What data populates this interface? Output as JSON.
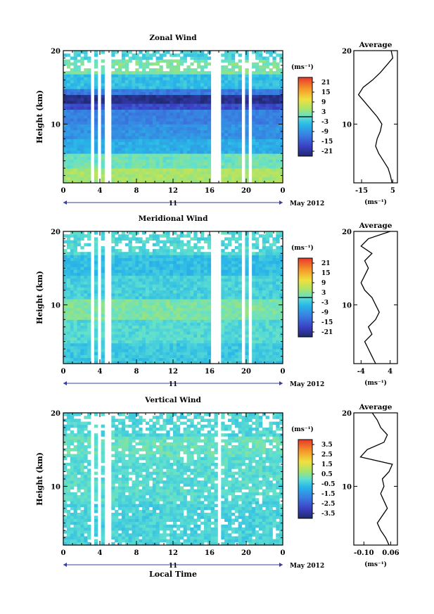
{
  "chart_data": [
    {
      "type": "heatmap",
      "title": "Zonal Wind",
      "ylabel": "Height (km)",
      "y_ticks": [
        "10",
        "20"
      ],
      "ylim": [
        2,
        20
      ],
      "x_ticks": [
        "0",
        "4",
        "8",
        "12",
        "16",
        "20",
        "0"
      ],
      "xlim": [
        0,
        24
      ],
      "date_marker": "11",
      "date_label": "May 2012",
      "unit_label": "(ms⁻¹)",
      "colorbar_ticks": [
        "21",
        "15",
        "9",
        "3",
        "-3",
        "-9",
        "-15",
        "-21"
      ],
      "colorbar_range": [
        -24,
        24
      ],
      "colorbar_zero": 0,
      "profile": {
        "title": "Average",
        "x_ticks": [
          "-15",
          "5"
        ],
        "xlim": [
          -20,
          8
        ],
        "x_tick_values": [
          -15,
          5
        ],
        "y_ticks": [
          "10",
          "20"
        ],
        "xlabel": "(ms⁻¹)",
        "points": [
          [
            4.5,
            2
          ],
          [
            3.5,
            3
          ],
          [
            2,
            4
          ],
          [
            -1,
            5
          ],
          [
            -4,
            6
          ],
          [
            -6,
            7
          ],
          [
            -5,
            8
          ],
          [
            -3,
            9
          ],
          [
            -2,
            10
          ],
          [
            -5,
            11
          ],
          [
            -9,
            12
          ],
          [
            -13,
            13
          ],
          [
            -17,
            14
          ],
          [
            -14,
            15
          ],
          [
            -8,
            16
          ],
          [
            -3,
            17
          ],
          [
            1,
            18
          ],
          [
            5,
            19
          ],
          [
            4,
            20
          ]
        ]
      },
      "bands": [
        {
          "h0": 2,
          "h1": 4,
          "v": 5
        },
        {
          "h0": 4,
          "h1": 6,
          "v": 1
        },
        {
          "h0": 6,
          "h1": 8,
          "v": -6
        },
        {
          "h0": 8,
          "h1": 10,
          "v": -9
        },
        {
          "h0": 10,
          "h1": 12,
          "v": -11
        },
        {
          "h0": 12,
          "h1": 13,
          "v": -17
        },
        {
          "h0": 13,
          "h1": 14,
          "v": -22
        },
        {
          "h0": 14,
          "h1": 15,
          "v": -12
        },
        {
          "h0": 15,
          "h1": 17,
          "v": -4
        },
        {
          "h0": 17,
          "h1": 19,
          "v": 2
        },
        {
          "h0": 19,
          "h1": 20,
          "v": -2
        }
      ],
      "gaps": [
        [
          3.0,
          3.3
        ],
        [
          3.8,
          4.2
        ],
        [
          4.6,
          5.1
        ],
        [
          16.3,
          17.2
        ],
        [
          19.6,
          20.0
        ],
        [
          20.4,
          20.8
        ]
      ]
    },
    {
      "type": "heatmap",
      "title": "Meridional Wind",
      "ylabel": "Height (km)",
      "y_ticks": [
        "10",
        "20"
      ],
      "ylim": [
        2,
        20
      ],
      "x_ticks": [
        "0",
        "4",
        "8",
        "12",
        "16",
        "20",
        "0"
      ],
      "xlim": [
        0,
        24
      ],
      "date_marker": "11",
      "date_label": "May 2012",
      "unit_label": "(ms⁻¹)",
      "colorbar_ticks": [
        "21",
        "15",
        "9",
        "3",
        "-3",
        "-9",
        "-15",
        "-21"
      ],
      "colorbar_range": [
        -24,
        24
      ],
      "colorbar_zero": 0,
      "profile": {
        "title": "Average",
        "x_ticks": [
          "-4",
          "4"
        ],
        "xlim": [
          -6,
          6
        ],
        "x_tick_values": [
          -4,
          4
        ],
        "y_ticks": [
          "10",
          "20"
        ],
        "xlabel": "(ms⁻¹)",
        "points": [
          [
            0,
            2
          ],
          [
            -1,
            3
          ],
          [
            -2,
            4
          ],
          [
            -3,
            5
          ],
          [
            -1,
            6
          ],
          [
            -2,
            7
          ],
          [
            0,
            8
          ],
          [
            1,
            9
          ],
          [
            0,
            10
          ],
          [
            -1,
            11
          ],
          [
            -3,
            12
          ],
          [
            -4,
            13
          ],
          [
            -3,
            14
          ],
          [
            -2,
            15
          ],
          [
            -3,
            16
          ],
          [
            -1,
            17
          ],
          [
            -4,
            18
          ],
          [
            -2,
            19
          ],
          [
            4,
            20
          ]
        ]
      },
      "bands": [
        {
          "h0": 2,
          "h1": 5,
          "v": -3
        },
        {
          "h0": 5,
          "h1": 8,
          "v": -1
        },
        {
          "h0": 8,
          "h1": 11,
          "v": 2
        },
        {
          "h0": 11,
          "h1": 14,
          "v": -2
        },
        {
          "h0": 14,
          "h1": 17,
          "v": -4
        },
        {
          "h0": 17,
          "h1": 20,
          "v": -1
        }
      ],
      "gaps": [
        [
          3.0,
          3.3
        ],
        [
          3.8,
          4.2
        ],
        [
          4.6,
          5.1
        ],
        [
          16.3,
          17.2
        ],
        [
          19.6,
          20.0
        ],
        [
          20.4,
          20.8
        ]
      ]
    },
    {
      "type": "heatmap",
      "title": "Vertical Wind",
      "ylabel": "Height (km)",
      "xlabel": "Local Time",
      "y_ticks": [
        "10",
        "20"
      ],
      "ylim": [
        2,
        20
      ],
      "x_ticks": [
        "0",
        "4",
        "8",
        "12",
        "16",
        "20",
        "0"
      ],
      "xlim": [
        0,
        24
      ],
      "date_marker": "11",
      "date_label": "May 2012",
      "unit_label": "(ms⁻¹)",
      "colorbar_ticks": [
        "3.5",
        "2.5",
        "1.5",
        "0.5",
        "-0.5",
        "-1.5",
        "-2.5",
        "-3.5"
      ],
      "colorbar_range": [
        -4,
        4
      ],
      "colorbar_zero": null,
      "profile": {
        "title": "Average",
        "x_ticks": [
          "-0.10",
          "0.06"
        ],
        "xlim": [
          -0.16,
          0.1
        ],
        "x_tick_values": [
          -0.1,
          0.06
        ],
        "y_ticks": [
          "10",
          "20"
        ],
        "xlabel": "(ms⁻¹)",
        "points": [
          [
            0.05,
            2
          ],
          [
            0.03,
            3
          ],
          [
            0.0,
            4
          ],
          [
            -0.02,
            5
          ],
          [
            0.01,
            6
          ],
          [
            0.04,
            7
          ],
          [
            0.02,
            8
          ],
          [
            0.0,
            9
          ],
          [
            0.02,
            10
          ],
          [
            0.01,
            11
          ],
          [
            0.05,
            12
          ],
          [
            0.07,
            13
          ],
          [
            -0.12,
            14
          ],
          [
            -0.08,
            15
          ],
          [
            0.02,
            16
          ],
          [
            0.04,
            17
          ],
          [
            0.0,
            18
          ],
          [
            -0.02,
            19
          ],
          [
            -0.05,
            20
          ]
        ]
      },
      "bands": [
        {
          "h0": 2,
          "h1": 8,
          "v": -0.3
        },
        {
          "h0": 8,
          "h1": 14,
          "v": -0.1
        },
        {
          "h0": 14,
          "h1": 17,
          "v": 0.1
        },
        {
          "h0": 17,
          "h1": 20,
          "v": -0.2
        }
      ],
      "gaps": [
        [
          3.0,
          3.3
        ],
        [
          3.8,
          4.2
        ],
        [
          4.6,
          5.1
        ],
        [
          17.0,
          17.4
        ],
        [
          20.2,
          20.4
        ]
      ]
    }
  ]
}
